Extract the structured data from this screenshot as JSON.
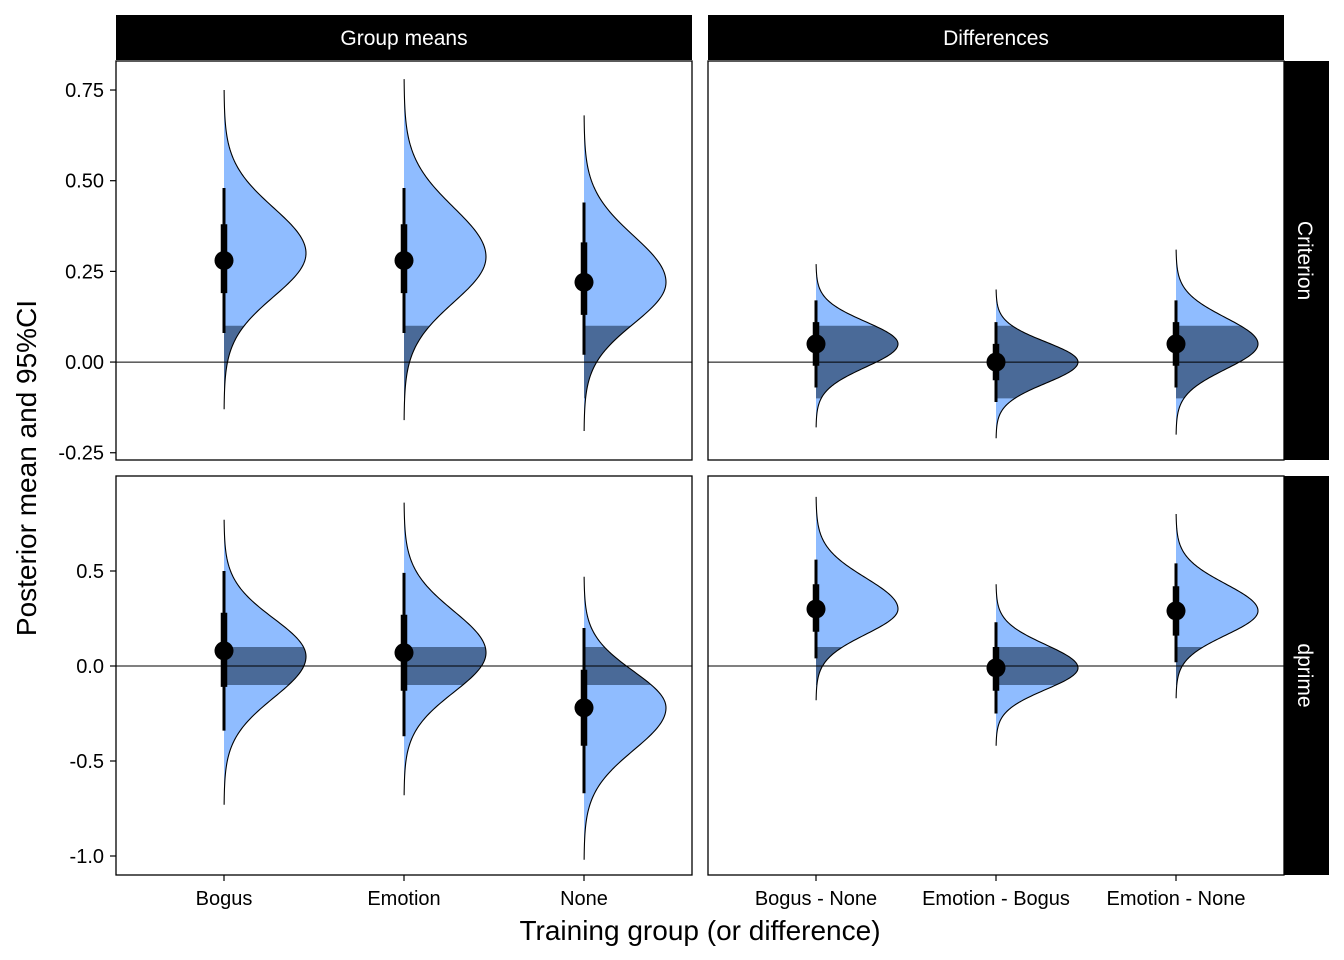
{
  "colors": {
    "density_fill": "#8FBCFF",
    "rope_fill": "#4A6A98",
    "outline": "#000000",
    "strip_bg": "#000000",
    "strip_text": "#FFFFFF"
  },
  "rope": [
    -0.1,
    0.1
  ],
  "chart_data": {
    "type": "halfeye",
    "xlabel": "Training group (or difference)",
    "ylabel": "Posterior mean and 95%CI",
    "column_strips": [
      "Group means",
      "Differences"
    ],
    "row_strips": [
      "Criterion",
      "dprime"
    ],
    "grid": false,
    "reference_line_y": 0,
    "panels": [
      {
        "column": "Group means",
        "row": "Criterion",
        "ylim": [
          -0.27,
          0.83
        ],
        "yticks": [
          -0.25,
          0.0,
          0.25,
          0.5,
          0.75
        ],
        "ytick_labels": [
          "-0.25",
          "0.00",
          "0.25",
          "0.50",
          "0.75"
        ],
        "categories": [
          "Bogus",
          "Emotion",
          "None"
        ],
        "points": [
          {
            "x": "Bogus",
            "mean": 0.28,
            "ci66": [
              0.19,
              0.38
            ],
            "ci95": [
              0.08,
              0.48
            ],
            "min": -0.13,
            "max": 0.75,
            "sd": 0.1,
            "mode": 0.3
          },
          {
            "x": "Emotion",
            "mean": 0.28,
            "ci66": [
              0.19,
              0.38
            ],
            "ci95": [
              0.08,
              0.48
            ],
            "min": -0.16,
            "max": 0.78,
            "sd": 0.1,
            "mode": 0.29
          },
          {
            "x": "None",
            "mean": 0.22,
            "ci66": [
              0.13,
              0.33
            ],
            "ci95": [
              0.02,
              0.44
            ],
            "min": -0.19,
            "max": 0.68,
            "sd": 0.11,
            "mode": 0.22
          }
        ]
      },
      {
        "column": "Differences",
        "row": "Criterion",
        "ylim": [
          -0.27,
          0.83
        ],
        "yticks": [
          -0.25,
          0.0,
          0.25,
          0.5,
          0.75
        ],
        "ytick_labels": [
          "-0.25",
          "0.00",
          "0.25",
          "0.50",
          "0.75"
        ],
        "categories": [
          "Bogus - None",
          "Emotion - Bogus",
          "Emotion - None"
        ],
        "points": [
          {
            "x": "Bogus - None",
            "mean": 0.05,
            "ci66": [
              -0.01,
              0.11
            ],
            "ci95": [
              -0.07,
              0.17
            ],
            "min": -0.18,
            "max": 0.27,
            "sd": 0.06,
            "mode": 0.05
          },
          {
            "x": "Emotion - Bogus",
            "mean": 0.0,
            "ci66": [
              -0.05,
              0.05
            ],
            "ci95": [
              -0.11,
              0.11
            ],
            "min": -0.21,
            "max": 0.2,
            "sd": 0.055,
            "mode": 0.0
          },
          {
            "x": "Emotion - None",
            "mean": 0.05,
            "ci66": [
              -0.01,
              0.11
            ],
            "ci95": [
              -0.07,
              0.17
            ],
            "min": -0.2,
            "max": 0.31,
            "sd": 0.06,
            "mode": 0.05
          }
        ]
      },
      {
        "column": "Group means",
        "row": "dprime",
        "ylim": [
          -1.1,
          1.0
        ],
        "yticks": [
          -1.0,
          -0.5,
          0.0,
          0.5
        ],
        "ytick_labels": [
          "-1.0",
          "-0.5",
          "0.0",
          "0.5"
        ],
        "categories": [
          "Bogus",
          "Emotion",
          "None"
        ],
        "points": [
          {
            "x": "Bogus",
            "mean": 0.08,
            "ci66": [
              -0.11,
              0.28
            ],
            "ci95": [
              -0.34,
              0.5
            ],
            "min": -0.73,
            "max": 0.77,
            "sd": 0.2,
            "mode": 0.05
          },
          {
            "x": "Emotion",
            "mean": 0.07,
            "ci66": [
              -0.13,
              0.27
            ],
            "ci95": [
              -0.37,
              0.49
            ],
            "min": -0.68,
            "max": 0.86,
            "sd": 0.2,
            "mode": 0.07
          },
          {
            "x": "None",
            "mean": -0.22,
            "ci66": [
              -0.42,
              -0.02
            ],
            "ci95": [
              -0.67,
              0.2
            ],
            "min": -1.02,
            "max": 0.47,
            "sd": 0.21,
            "mode": -0.22
          }
        ]
      },
      {
        "column": "Differences",
        "row": "dprime",
        "ylim": [
          -1.1,
          1.0
        ],
        "yticks": [
          -1.0,
          -0.5,
          0.0,
          0.5
        ],
        "ytick_labels": [
          "-1.0",
          "-0.5",
          "0.0",
          "0.5"
        ],
        "categories": [
          "Bogus - None",
          "Emotion - Bogus",
          "Emotion - None"
        ],
        "points": [
          {
            "x": "Bogus - None",
            "mean": 0.3,
            "ci66": [
              0.18,
              0.43
            ],
            "ci95": [
              0.04,
              0.56
            ],
            "min": -0.18,
            "max": 0.89,
            "sd": 0.13,
            "mode": 0.3
          },
          {
            "x": "Emotion - Bogus",
            "mean": -0.01,
            "ci66": [
              -0.13,
              0.1
            ],
            "ci95": [
              -0.25,
              0.23
            ],
            "min": -0.42,
            "max": 0.43,
            "sd": 0.12,
            "mode": -0.01
          },
          {
            "x": "Emotion - None",
            "mean": 0.29,
            "ci66": [
              0.16,
              0.42
            ],
            "ci95": [
              0.02,
              0.54
            ],
            "min": -0.17,
            "max": 0.8,
            "sd": 0.13,
            "mode": 0.29
          }
        ]
      }
    ]
  }
}
